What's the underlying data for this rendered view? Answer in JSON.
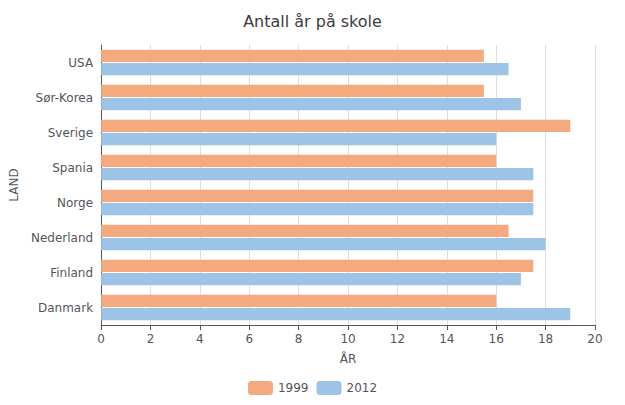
{
  "chart_data": {
    "type": "bar",
    "orientation": "horizontal",
    "title": "Antall år på skole",
    "xlabel": "ÅR",
    "ylabel": "LAND",
    "categories": [
      "Danmark",
      "Finland",
      "Nederland",
      "Norge",
      "Spania",
      "Sverige",
      "Sør-Korea",
      "USA"
    ],
    "series": [
      {
        "name": "1999",
        "color": "#F4A97F",
        "values": [
          16.0,
          17.5,
          16.5,
          17.5,
          16.0,
          19.0,
          15.5,
          15.5
        ]
      },
      {
        "name": "2012",
        "color": "#9DC3E6",
        "values": [
          19.0,
          17.0,
          18.0,
          17.5,
          17.5,
          16.0,
          17.0,
          16.5
        ]
      }
    ],
    "xlim": [
      0,
      20
    ],
    "xticks": [
      0,
      2,
      4,
      6,
      8,
      10,
      12,
      14,
      16,
      18,
      20
    ],
    "grid": true,
    "legend": "bottom"
  }
}
